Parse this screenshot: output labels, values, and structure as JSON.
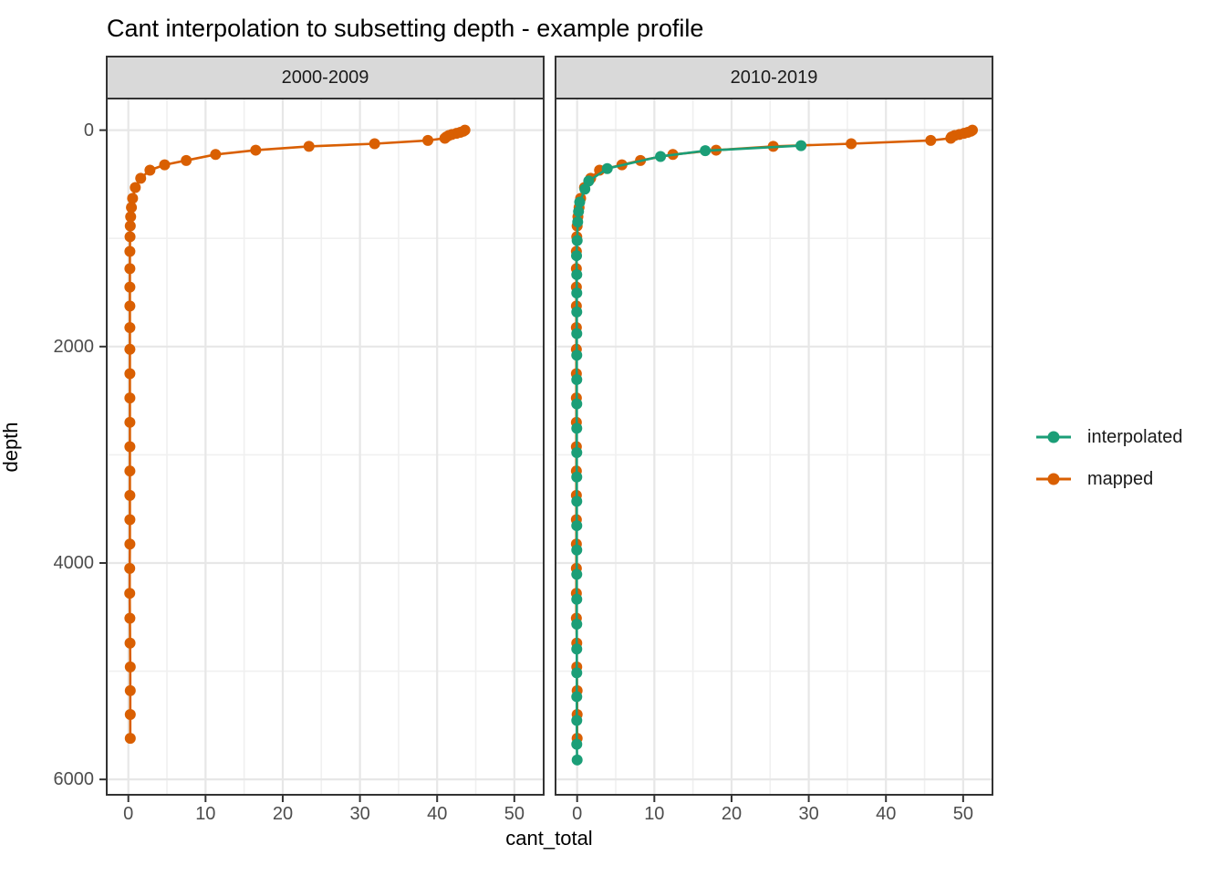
{
  "chart_data": {
    "type": "line-scatter-faceted",
    "title": "Cant interpolation to subsetting depth - example profile",
    "xlabel": "cant_total",
    "ylabel": "depth",
    "x_ticks": [
      0,
      10,
      20,
      30,
      40,
      50
    ],
    "x_minor_ticks": [
      5,
      15,
      25,
      35,
      45
    ],
    "y_ticks": [
      0,
      2000,
      4000,
      6000
    ],
    "y_minor_ticks": [
      1000,
      3000,
      5000
    ],
    "x_domain": [
      -2.8,
      53.8
    ],
    "y_domain": [
      -292,
      6142
    ],
    "y_reversed": true,
    "grid": true,
    "legend_position": "right",
    "colors": {
      "mapped": "#D95F02",
      "interpolated": "#1B9E77",
      "strip_fill": "#D9D9D9",
      "panel_border": "#333333",
      "grid_major": "#E7E7E7",
      "grid_minor": "#F0F0F0",
      "axis_text": "#4D4D4D"
    },
    "legend": [
      {
        "label": "interpolated",
        "color": "#1B9E77"
      },
      {
        "label": "mapped",
        "color": "#D95F02"
      }
    ],
    "facets": [
      {
        "label": "2000-2009",
        "series": [
          {
            "name": "mapped",
            "color": "#D95F02",
            "points": [
              [
                43.6,
                0
              ],
              [
                43.4,
                10
              ],
              [
                43.0,
                20
              ],
              [
                42.5,
                30
              ],
              [
                41.9,
                40
              ],
              [
                41.5,
                50
              ],
              [
                41.2,
                62
              ],
              [
                41.0,
                75
              ],
              [
                38.8,
                95
              ],
              [
                31.9,
                125
              ],
              [
                23.4,
                150
              ],
              [
                16.5,
                185
              ],
              [
                11.3,
                225
              ],
              [
                7.5,
                280
              ],
              [
                4.7,
                320
              ],
              [
                2.8,
                370
              ],
              [
                1.6,
                445
              ],
              [
                0.9,
                530
              ],
              [
                0.55,
                630
              ],
              [
                0.4,
                715
              ],
              [
                0.3,
                800
              ],
              [
                0.25,
                885
              ],
              [
                0.22,
                985
              ],
              [
                0.2,
                1120
              ],
              [
                0.2,
                1280
              ],
              [
                0.2,
                1450
              ],
              [
                0.2,
                1625
              ],
              [
                0.2,
                1825
              ],
              [
                0.2,
                2025
              ],
              [
                0.2,
                2250
              ],
              [
                0.2,
                2475
              ],
              [
                0.2,
                2700
              ],
              [
                0.2,
                2925
              ],
              [
                0.2,
                3150
              ],
              [
                0.2,
                3375
              ],
              [
                0.2,
                3600
              ],
              [
                0.2,
                3825
              ],
              [
                0.18,
                4050
              ],
              [
                0.18,
                4280
              ],
              [
                0.2,
                4510
              ],
              [
                0.22,
                4740
              ],
              [
                0.25,
                4960
              ],
              [
                0.25,
                5180
              ],
              [
                0.25,
                5400
              ],
              [
                0.25,
                5620
              ]
            ]
          }
        ]
      },
      {
        "label": "2010-2019",
        "series": [
          {
            "name": "mapped",
            "color": "#D95F02",
            "points": [
              [
                51.2,
                0
              ],
              [
                51.0,
                10
              ],
              [
                50.6,
                20
              ],
              [
                50.1,
                30
              ],
              [
                49.5,
                40
              ],
              [
                48.9,
                50
              ],
              [
                48.5,
                62
              ],
              [
                48.4,
                75
              ],
              [
                45.8,
                95
              ],
              [
                35.5,
                125
              ],
              [
                25.4,
                150
              ],
              [
                18.0,
                185
              ],
              [
                12.4,
                225
              ],
              [
                8.2,
                280
              ],
              [
                5.8,
                320
              ],
              [
                2.9,
                370
              ],
              [
                1.75,
                445
              ],
              [
                0.95,
                530
              ],
              [
                0.45,
                630
              ],
              [
                0.25,
                715
              ],
              [
                0.1,
                800
              ],
              [
                0.0,
                885
              ],
              [
                -0.05,
                985
              ],
              [
                -0.1,
                1120
              ],
              [
                -0.1,
                1280
              ],
              [
                -0.1,
                1450
              ],
              [
                -0.1,
                1625
              ],
              [
                -0.1,
                1825
              ],
              [
                -0.1,
                2025
              ],
              [
                -0.1,
                2250
              ],
              [
                -0.1,
                2475
              ],
              [
                -0.1,
                2700
              ],
              [
                -0.1,
                2925
              ],
              [
                -0.1,
                3150
              ],
              [
                -0.1,
                3375
              ],
              [
                -0.1,
                3600
              ],
              [
                -0.1,
                3825
              ],
              [
                -0.1,
                4050
              ],
              [
                -0.1,
                4280
              ],
              [
                -0.1,
                4510
              ],
              [
                -0.05,
                4740
              ],
              [
                -0.05,
                4960
              ],
              [
                0.0,
                5180
              ],
              [
                0.0,
                5400
              ],
              [
                0.0,
                5620
              ]
            ]
          },
          {
            "name": "interpolated",
            "color": "#1B9E77",
            "points": [
              [
                29.0,
                143
              ],
              [
                16.6,
                190
              ],
              [
                10.8,
                243
              ],
              [
                3.9,
                355
              ],
              [
                1.5,
                470
              ],
              [
                1.0,
                545
              ],
              [
                0.33,
                665
              ],
              [
                0.18,
                752
              ],
              [
                0.07,
                848
              ],
              [
                0.0,
                1020
              ],
              [
                -0.08,
                1160
              ],
              [
                -0.05,
                1335
              ],
              [
                -0.05,
                1505
              ],
              [
                -0.05,
                1680
              ],
              [
                -0.05,
                1880
              ],
              [
                -0.05,
                2080
              ],
              [
                -0.05,
                2305
              ],
              [
                -0.05,
                2530
              ],
              [
                -0.05,
                2755
              ],
              [
                -0.05,
                2980
              ],
              [
                -0.05,
                3205
              ],
              [
                -0.05,
                3430
              ],
              [
                -0.05,
                3655
              ],
              [
                -0.05,
                3880
              ],
              [
                -0.05,
                4105
              ],
              [
                -0.05,
                4335
              ],
              [
                -0.05,
                4565
              ],
              [
                -0.05,
                4795
              ],
              [
                -0.05,
                5015
              ],
              [
                -0.05,
                5235
              ],
              [
                -0.05,
                5455
              ],
              [
                -0.05,
                5675
              ],
              [
                0.0,
                5820
              ]
            ]
          }
        ]
      }
    ]
  }
}
